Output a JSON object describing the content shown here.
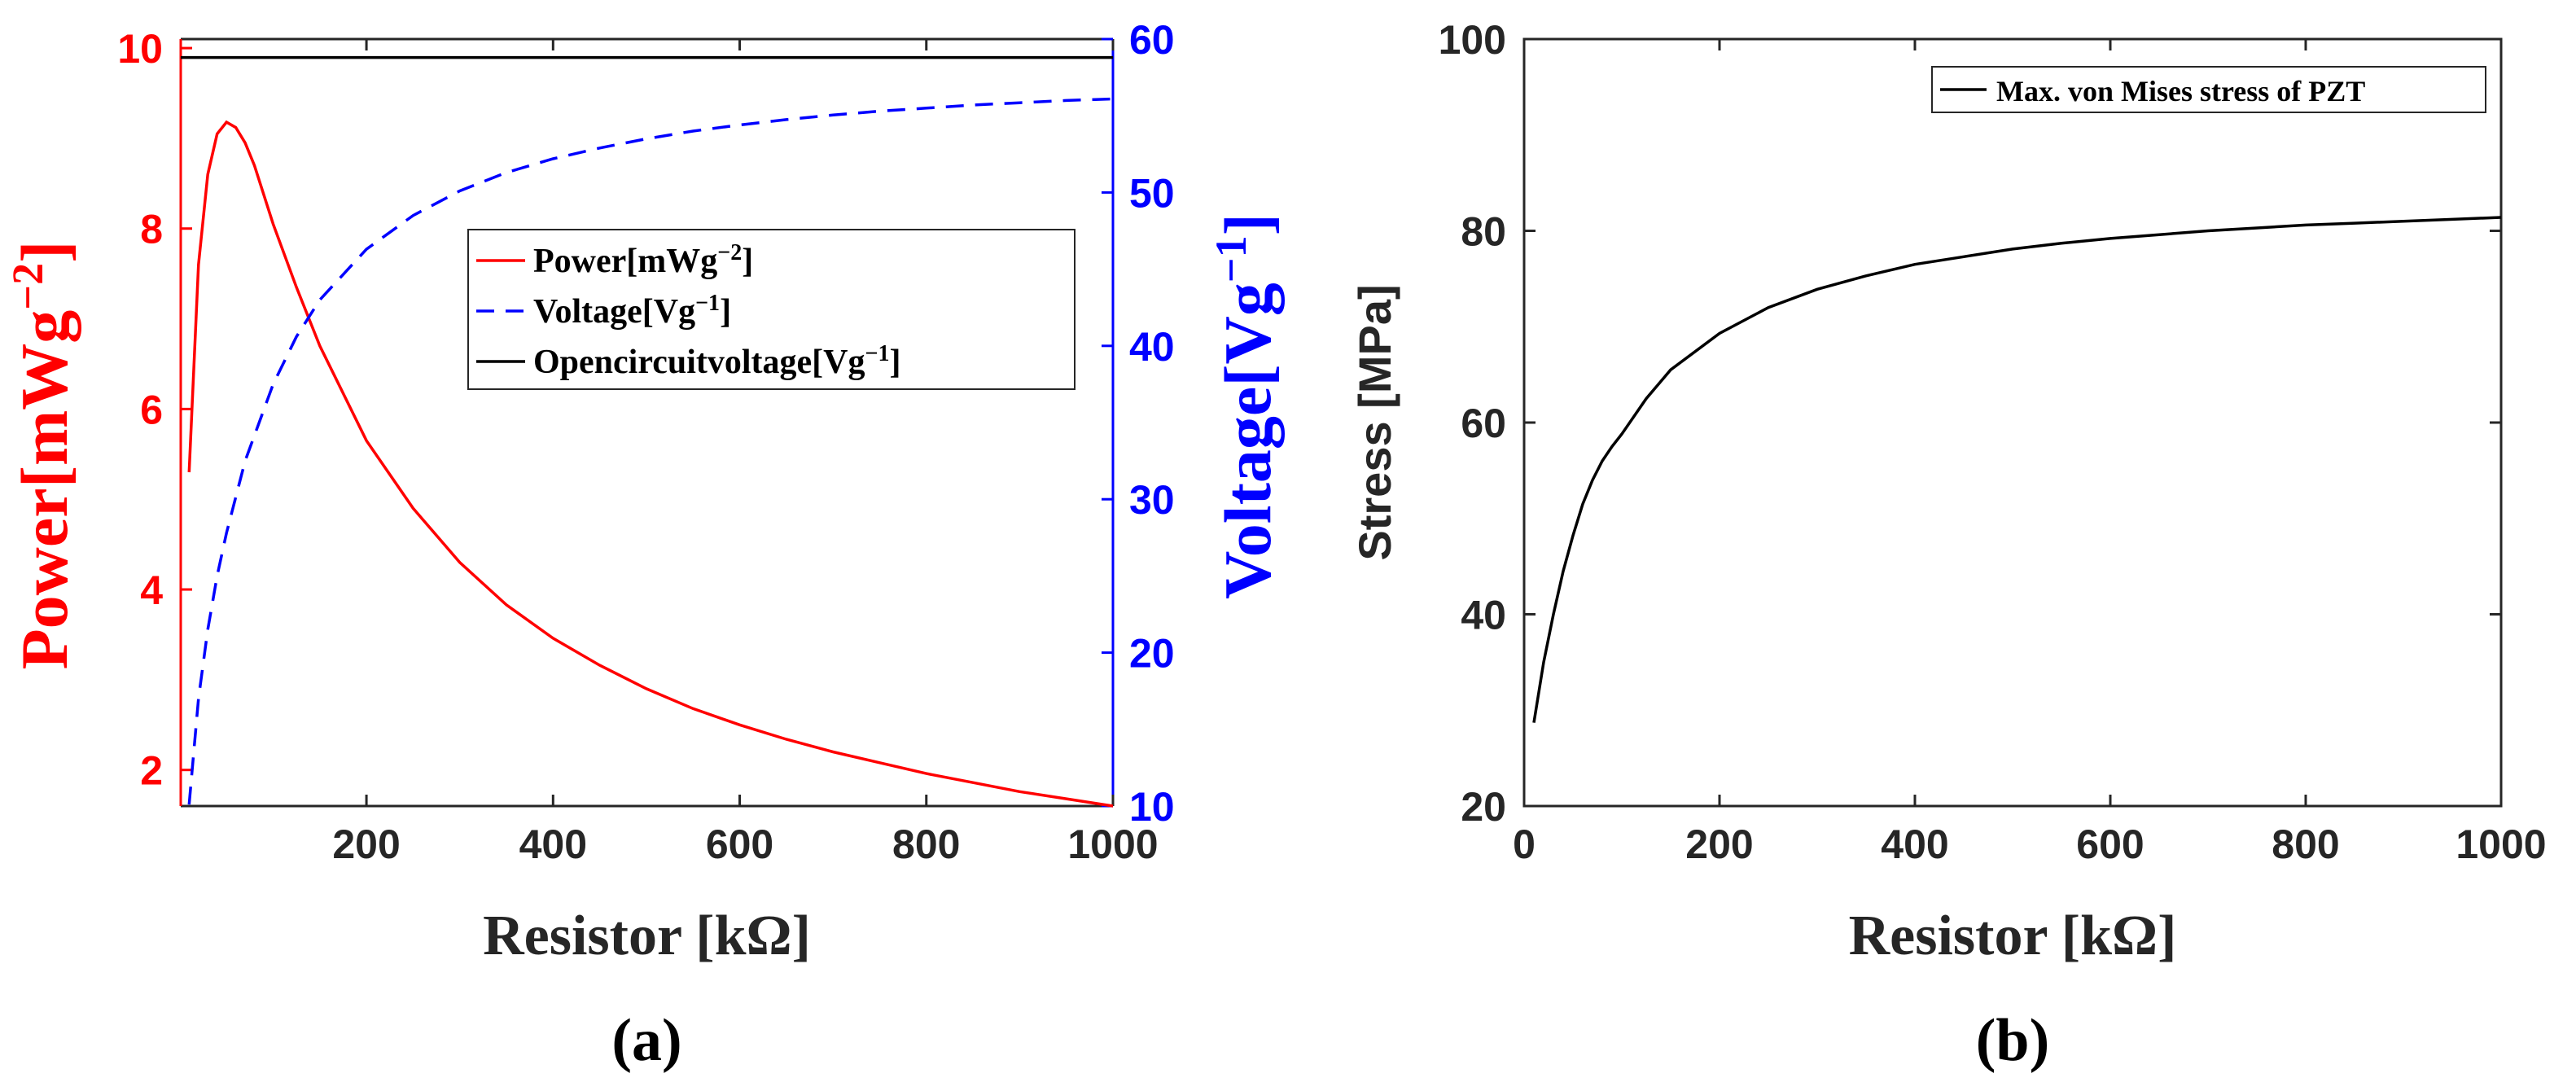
{
  "chart_data": [
    {
      "panel": "(a)",
      "type": "line",
      "dual_axis": true,
      "xlabel": "Resistor [kΩ]",
      "ylabel_left": "Power[mWg−2]",
      "ylabel_right": "Voltage[Vg−1]",
      "xlim": [
        1,
        1000
      ],
      "ylim_left": [
        1.6,
        10.1
      ],
      "ylim_right": [
        10,
        60
      ],
      "x_ticks": [
        200,
        400,
        600,
        800,
        1000
      ],
      "y_ticks_left": [
        2,
        4,
        6,
        8,
        10
      ],
      "y_ticks_right": [
        10,
        20,
        30,
        40,
        50,
        60
      ],
      "left_color": "#ff0000",
      "right_color": "#0000ff",
      "legend_position": "center",
      "series": [
        {
          "name": "Power[mWg−2]",
          "axis": "left",
          "style": "solid",
          "color": "#ff0000",
          "x": [
            10,
            20,
            30,
            40,
            50,
            60,
            70,
            80,
            100,
            125,
            150,
            200,
            250,
            300,
            350,
            400,
            450,
            500,
            550,
            600,
            650,
            700,
            750,
            800,
            850,
            900,
            950,
            1000
          ],
          "y": [
            5.3,
            7.6,
            8.6,
            9.05,
            9.18,
            9.12,
            8.95,
            8.7,
            8.05,
            7.35,
            6.7,
            5.65,
            4.9,
            4.3,
            3.83,
            3.46,
            3.16,
            2.9,
            2.68,
            2.5,
            2.34,
            2.2,
            2.08,
            1.96,
            1.86,
            1.76,
            1.68,
            1.6
          ]
        },
        {
          "name": "Voltage[Vg−1]",
          "axis": "right",
          "style": "dashed",
          "color": "#0000ff",
          "x": [
            10,
            20,
            30,
            40,
            50,
            70,
            100,
            125,
            150,
            200,
            250,
            300,
            350,
            400,
            450,
            500,
            550,
            600,
            650,
            700,
            750,
            800,
            850,
            900,
            950,
            1000
          ],
          "y": [
            10.1,
            17,
            21.5,
            25,
            27.8,
            32.5,
            37.5,
            40.6,
            43,
            46.3,
            48.5,
            50.1,
            51.3,
            52.2,
            52.9,
            53.5,
            54,
            54.4,
            54.75,
            55.05,
            55.3,
            55.5,
            55.7,
            55.85,
            56,
            56.1
          ]
        },
        {
          "name": "Opencircuitvoltage[Vg−1]",
          "axis": "right",
          "style": "solid",
          "color": "#000000",
          "x": [
            1,
            1000
          ],
          "y": [
            58.8,
            58.8
          ]
        }
      ]
    },
    {
      "panel": "(b)",
      "type": "line",
      "xlabel": "Resistor [kΩ]",
      "ylabel": "Stress [MPa]",
      "xlim": [
        0,
        1000
      ],
      "ylim": [
        20,
        100
      ],
      "x_ticks": [
        0,
        200,
        400,
        600,
        800,
        1000
      ],
      "y_ticks": [
        20,
        40,
        60,
        80,
        100
      ],
      "legend_position": "top-right",
      "series": [
        {
          "name": "Max. von Mises stress of PZT",
          "style": "solid",
          "color": "#000000",
          "x": [
            10,
            20,
            30,
            40,
            50,
            60,
            70,
            80,
            90,
            100,
            125,
            150,
            200,
            250,
            300,
            350,
            400,
            450,
            500,
            550,
            600,
            650,
            700,
            750,
            800,
            850,
            900,
            950,
            1000
          ],
          "y": [
            28.7,
            35,
            40,
            44.5,
            48.2,
            51.5,
            54,
            56,
            57.5,
            58.8,
            62.5,
            65.5,
            69.3,
            72,
            73.9,
            75.3,
            76.5,
            77.3,
            78.1,
            78.7,
            79.2,
            79.6,
            80,
            80.3,
            80.6,
            80.8,
            81,
            81.2,
            81.4
          ]
        }
      ]
    }
  ]
}
